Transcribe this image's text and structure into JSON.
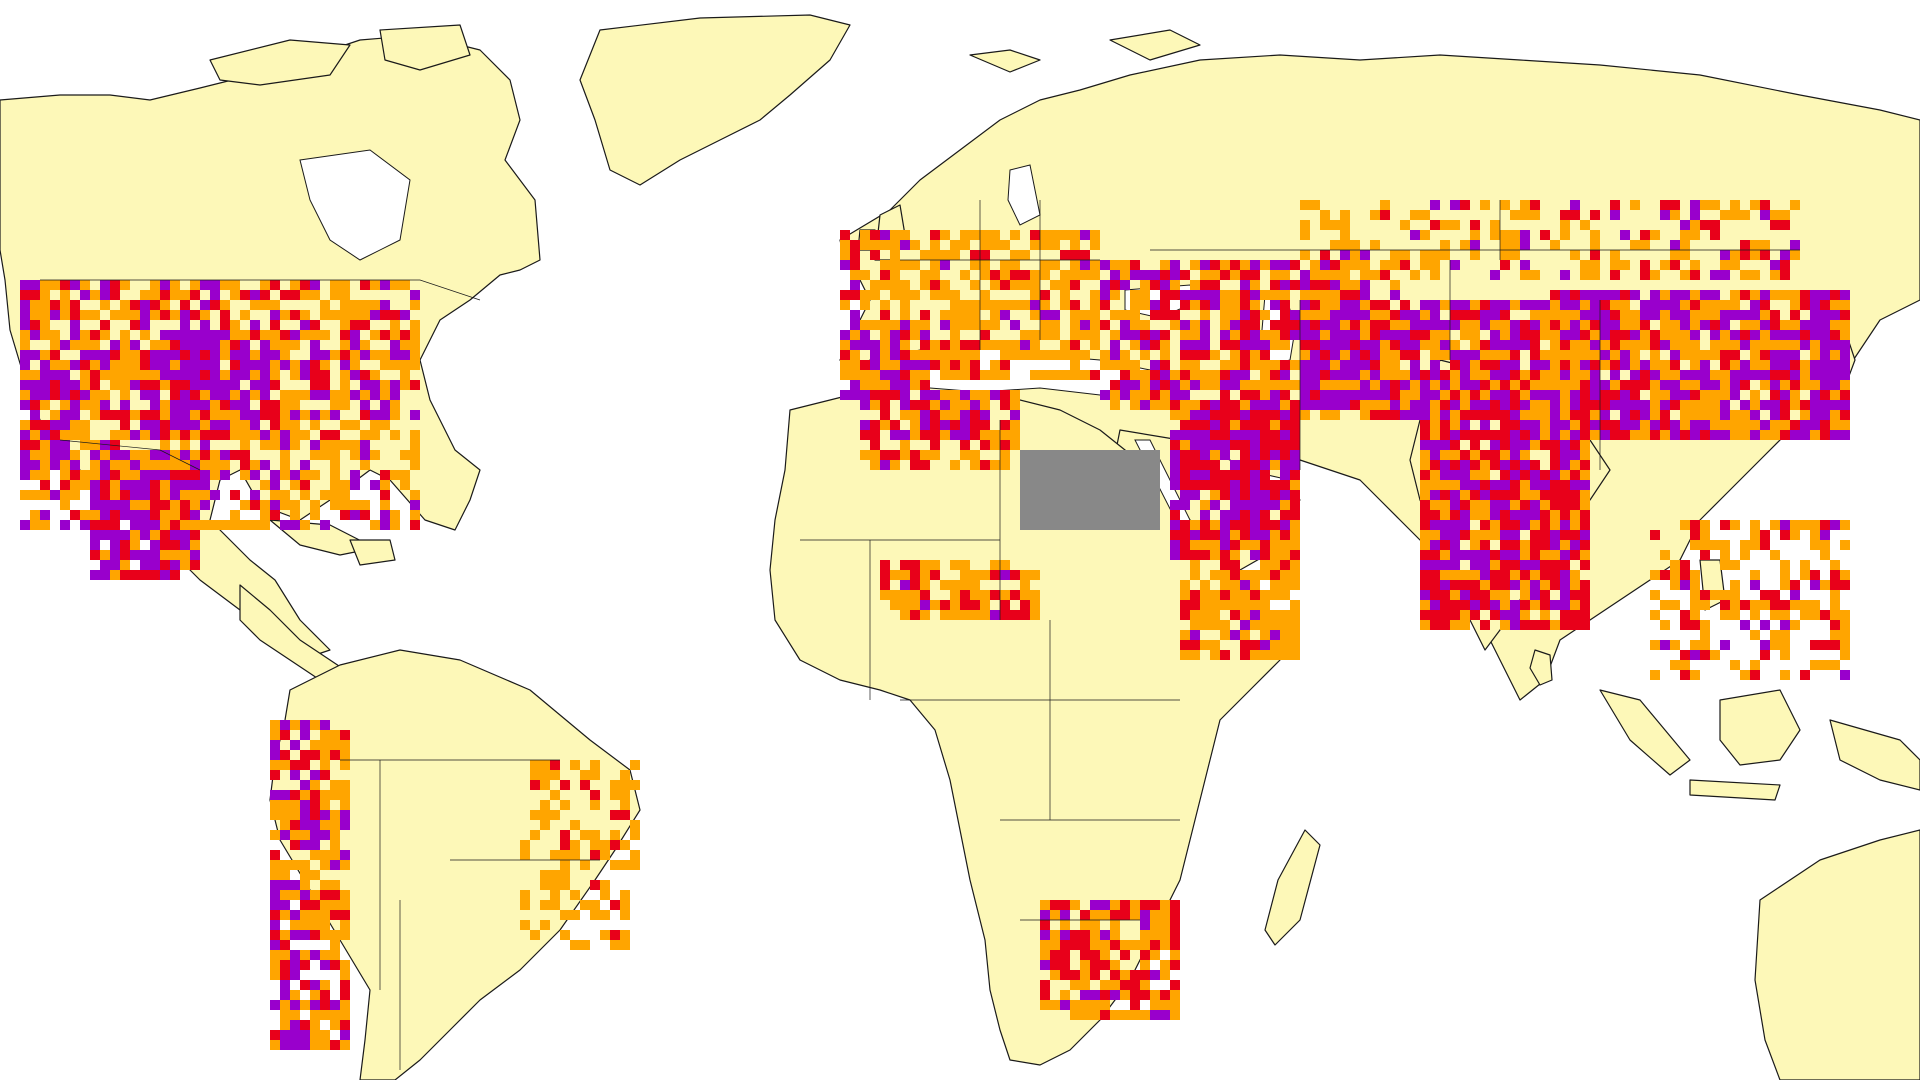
{
  "map": {
    "projection": "equirectangular",
    "colors": {
      "ocean": "#ffffff",
      "land": "#fdf8b8",
      "class_orange": "#ffa500",
      "class_red": "#e8001a",
      "class_purple": "#9900cc",
      "no_data": "#888888",
      "border": "#1a1a1a"
    },
    "legend_visible": false
  }
}
